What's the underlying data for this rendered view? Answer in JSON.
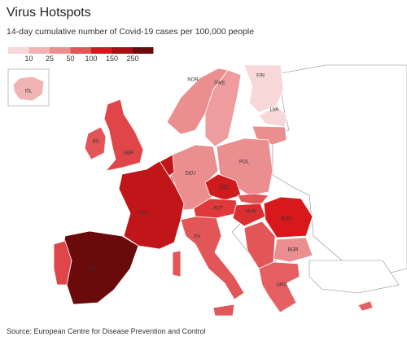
{
  "title": "Virus Hotspots",
  "subtitle": "14-day cumulative number of Covid-19 cases per 100,000 people",
  "legend": {
    "ticks": [
      10,
      25,
      50,
      100,
      150,
      250
    ],
    "colors": [
      "#f7d7d8",
      "#f2b3b4",
      "#eb8e90",
      "#e35658",
      "#cf1a1e",
      "#a30f12",
      "#6b0a0a"
    ]
  },
  "countries": [
    {
      "label": "ISL",
      "color": "#f2b3b4"
    },
    {
      "label": "IRL",
      "color": "#e35658"
    },
    {
      "label": "GBR",
      "color": "#e04649"
    },
    {
      "label": "NOR",
      "color": "#eb8e90"
    },
    {
      "label": "SWE",
      "color": "#ee9c9e"
    },
    {
      "label": "FIN",
      "color": "#f7d7d8"
    },
    {
      "label": "LVA",
      "color": "#f7d7d8"
    },
    {
      "label": "DEU",
      "color": "#eb8e90"
    },
    {
      "label": "POL",
      "color": "#eb8e90"
    },
    {
      "label": "CZE",
      "color": "#cf1a1e"
    },
    {
      "label": "AUT",
      "color": "#e0393c"
    },
    {
      "label": "HUN",
      "color": "#d92f32"
    },
    {
      "label": "ROU",
      "color": "#d8181b"
    },
    {
      "label": "BGR",
      "color": "#eb8e90"
    },
    {
      "label": "FRA",
      "color": "#c0161a"
    },
    {
      "label": "ESP",
      "color": "#6b0a0a"
    },
    {
      "label": "ITA",
      "color": "#e35658"
    },
    {
      "label": "GRC",
      "color": "#e66063"
    }
  ],
  "source": "Source: European Centre for Disease Prevention and Control"
}
